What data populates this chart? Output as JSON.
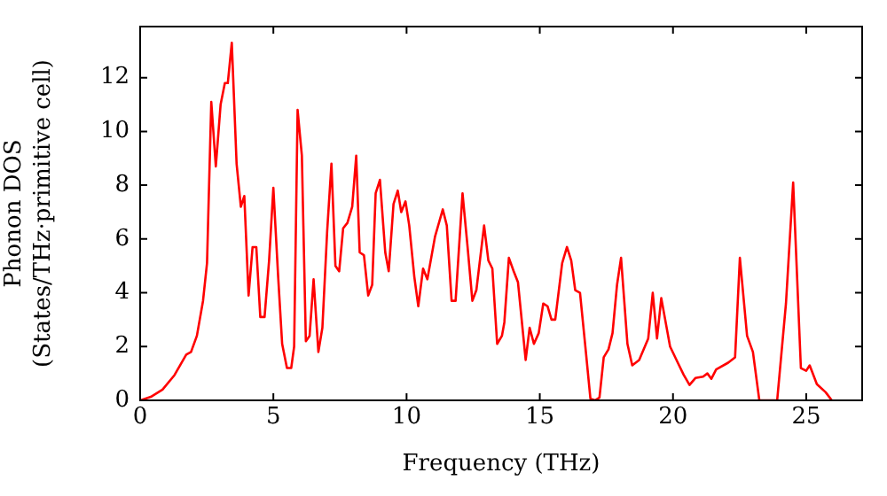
{
  "chart_data": {
    "type": "line",
    "xlabel": "Frequency (THz)",
    "ylabel": "Phonon DOS\n(States/THz·primitive cell)",
    "xlim": [
      0,
      27.1
    ],
    "xticks": [
      0,
      5,
      10,
      15,
      20,
      25
    ],
    "ylim": [
      0,
      13.9
    ],
    "yticks": [
      0,
      2,
      4,
      6,
      8,
      10,
      12
    ],
    "grid": false,
    "legend": false,
    "marker": "none",
    "line_style": "solid",
    "series": [
      {
        "color": "#ff0000",
        "x": [
          0,
          0.4,
          0.84,
          1.29,
          1.73,
          1.91,
          2.13,
          2.36,
          2.51,
          2.67,
          2.84,
          3.02,
          3.18,
          3.29,
          3.44,
          3.62,
          3.78,
          3.91,
          4.07,
          4.22,
          4.36,
          4.51,
          4.67,
          4.84,
          5.0,
          5.18,
          5.33,
          5.51,
          5.67,
          5.78,
          5.91,
          6.07,
          6.22,
          6.36,
          6.51,
          6.69,
          6.84,
          7.02,
          7.18,
          7.33,
          7.47,
          7.62,
          7.78,
          7.96,
          8.11,
          8.24,
          8.4,
          8.56,
          8.71,
          8.84,
          9.0,
          9.2,
          9.33,
          9.51,
          9.67,
          9.8,
          9.96,
          10.1,
          10.29,
          10.44,
          10.62,
          10.78,
          11.07,
          11.36,
          11.51,
          11.69,
          11.84,
          12.1,
          12.29,
          12.47,
          12.62,
          12.91,
          13.07,
          13.22,
          13.4,
          13.58,
          13.67,
          13.84,
          14.02,
          14.18,
          14.47,
          14.62,
          14.78,
          14.96,
          15.13,
          15.29,
          15.44,
          15.58,
          15.84,
          16.02,
          16.18,
          16.33,
          16.51,
          16.73,
          16.9,
          17.07,
          17.24,
          17.4,
          17.58,
          17.73,
          17.9,
          18.05,
          18.29,
          18.47,
          18.73,
          19.07,
          19.24,
          19.4,
          19.56,
          19.89,
          20.18,
          20.4,
          20.62,
          20.84,
          21.13,
          21.29,
          21.44,
          21.62,
          22.07,
          22.33,
          22.51,
          22.78,
          23.0,
          23.24,
          23.91,
          24.24,
          24.51,
          24.8,
          25.0,
          25.13,
          25.4,
          25.73,
          25.96
        ],
        "values": [
          0,
          0.13,
          0.4,
          0.94,
          1.7,
          1.8,
          2.4,
          3.7,
          5.1,
          11.1,
          8.7,
          11.0,
          11.8,
          11.8,
          13.3,
          8.8,
          7.2,
          7.6,
          3.9,
          5.7,
          5.7,
          3.1,
          3.1,
          5.2,
          7.9,
          4.6,
          2.1,
          1.2,
          1.2,
          2.0,
          10.8,
          9.1,
          2.2,
          2.4,
          4.5,
          1.8,
          2.7,
          6.3,
          8.8,
          5.0,
          4.8,
          6.4,
          6.6,
          7.2,
          9.1,
          5.5,
          5.4,
          3.9,
          4.3,
          7.7,
          8.2,
          5.5,
          4.8,
          7.3,
          7.8,
          7.0,
          7.4,
          6.5,
          4.6,
          3.5,
          4.9,
          4.5,
          6.1,
          7.1,
          6.5,
          3.7,
          3.7,
          7.7,
          5.7,
          3.7,
          4.1,
          6.5,
          5.2,
          4.9,
          2.1,
          2.4,
          2.9,
          5.3,
          4.8,
          4.4,
          1.5,
          2.7,
          2.1,
          2.5,
          3.6,
          3.5,
          3.0,
          3.0,
          5.1,
          5.7,
          5.2,
          4.1,
          4.0,
          1.8,
          0.07,
          0,
          0.1,
          1.6,
          1.9,
          2.5,
          4.3,
          5.3,
          2.1,
          1.3,
          1.5,
          2.3,
          4.0,
          2.3,
          3.8,
          2.0,
          1.4,
          0.95,
          0.57,
          0.83,
          0.88,
          1.0,
          0.8,
          1.15,
          1.4,
          1.6,
          5.3,
          2.4,
          1.8,
          0,
          0,
          3.6,
          8.1,
          1.2,
          1.1,
          1.3,
          0.6,
          0.3,
          0
        ]
      }
    ]
  }
}
